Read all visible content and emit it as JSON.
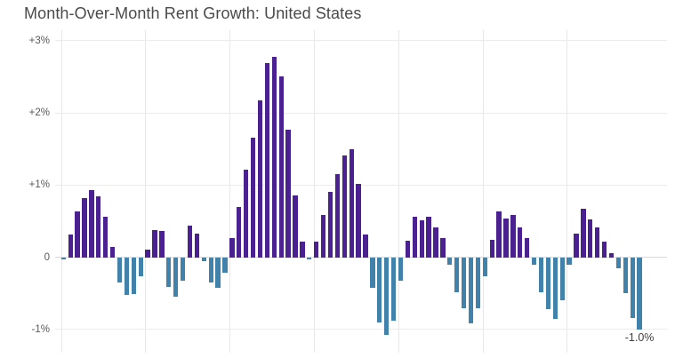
{
  "title": "Month-Over-Month Rent Growth: United States",
  "chart_data": {
    "type": "bar",
    "title": "Month-Over-Month Rent Growth: United States",
    "xlabel": "",
    "ylabel": "",
    "unit": "percent",
    "ylim": [
      -1.25,
      3.1
    ],
    "y_ticks": [
      {
        "value": 3,
        "label": "+3%"
      },
      {
        "value": 2,
        "label": "+2%"
      },
      {
        "value": 1,
        "label": "+1%"
      },
      {
        "value": 0,
        "label": "0"
      },
      {
        "value": -1,
        "label": "-1%"
      }
    ],
    "grid": true,
    "legend_position": "none",
    "x_tick_labels_visible": false,
    "x_gridline_indices": [
      0,
      12,
      24,
      36,
      48,
      60,
      72
    ],
    "positive_color": "#4b2191",
    "negative_color": "#4182aa",
    "values": [
      -0.03,
      0.31,
      0.64,
      0.82,
      0.93,
      0.84,
      0.56,
      0.14,
      -0.35,
      -0.52,
      -0.51,
      -0.26,
      0.1,
      0.38,
      0.36,
      -0.41,
      -0.55,
      -0.32,
      0.44,
      0.33,
      -0.05,
      -0.35,
      -0.42,
      -0.22,
      0.27,
      0.7,
      1.21,
      1.65,
      2.17,
      2.69,
      2.78,
      2.51,
      1.77,
      0.86,
      0.21,
      -0.02,
      0.22,
      0.58,
      0.9,
      1.15,
      1.41,
      1.49,
      1.02,
      0.32,
      -0.43,
      -0.91,
      -1.08,
      -0.88,
      -0.32,
      0.23,
      0.56,
      0.51,
      0.56,
      0.41,
      0.27,
      -0.11,
      -0.49,
      -0.71,
      -0.92,
      -0.71,
      -0.26,
      0.24,
      0.63,
      0.54,
      0.58,
      0.41,
      0.26,
      -0.11,
      -0.49,
      -0.72,
      -0.85,
      -0.6,
      -0.1,
      0.33,
      0.67,
      0.52,
      0.41,
      0.21,
      0.05,
      -0.15,
      -0.5,
      -0.84,
      -1.0
    ],
    "annotation": {
      "text": "-1.0%",
      "attached_to": "last-bar"
    }
  }
}
